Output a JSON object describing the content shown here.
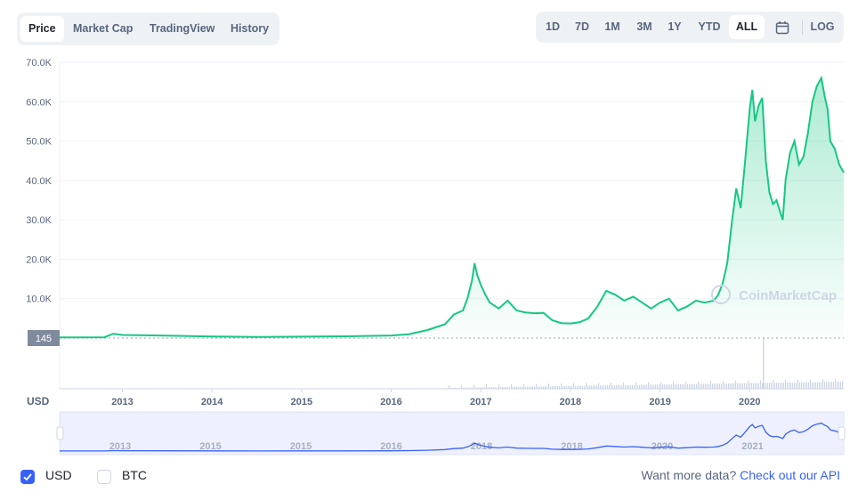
{
  "tabs": [
    "Price",
    "Market Cap",
    "TradingView",
    "History"
  ],
  "active_tab": "Price",
  "ranges": [
    "1D",
    "7D",
    "1M",
    "3M",
    "1Y",
    "YTD",
    "ALL"
  ],
  "active_range": "ALL",
  "log_label": "LOG",
  "icons": {
    "calendar": "calendar-icon",
    "check": "check-icon"
  },
  "currency_axis_label": "USD",
  "watermark": "CoinMarketCap",
  "current_marker": "145",
  "navigator_ticks": [
    "2013",
    "2015",
    "2015",
    "2016",
    "2018",
    "2018",
    "2020",
    "2021"
  ],
  "legend": [
    {
      "label": "USD",
      "checked": true
    },
    {
      "label": "BTC",
      "checked": false
    }
  ],
  "footer": {
    "text": "Want more data?",
    "link": "Check out our API"
  },
  "colors": {
    "line": "#16c784",
    "accent": "#3861fb",
    "volume": "#cfd6e4",
    "navigator_line": "#3861fb"
  },
  "chart_data": {
    "type": "area",
    "ylim": [
      0,
      70000
    ],
    "ytick_labels": [
      "10.0K",
      "20.0K",
      "30.0K",
      "40.0K",
      "50.0K",
      "60.0K",
      "70.0K"
    ],
    "ytick_values": [
      10000,
      20000,
      30000,
      40000,
      50000,
      60000,
      70000
    ],
    "xtick_labels": [
      "2013",
      "2014",
      "2015",
      "2016",
      "2017",
      "2018",
      "2019",
      "2020"
    ],
    "xtick_values": [
      2013,
      2014,
      2015,
      2016,
      2017,
      2018,
      2019,
      2020
    ],
    "xlim": [
      2012.3,
      2021.05
    ],
    "series": [
      {
        "x": [
          2012.3,
          2012.8,
          2012.9,
          2013.0,
          2013.5,
          2014.0,
          2014.5,
          2015.0,
          2015.5,
          2016.0,
          2016.2,
          2016.4,
          2016.6,
          2016.7,
          2016.8,
          2016.85,
          2016.9,
          2016.93,
          2016.96,
          2017.0,
          2017.05,
          2017.1,
          2017.2,
          2017.3,
          2017.4,
          2017.5,
          2017.6,
          2017.7,
          2017.8,
          2017.9,
          2018.0,
          2018.1,
          2018.2,
          2018.3,
          2018.4,
          2018.5,
          2018.6,
          2018.7,
          2018.8,
          2018.9,
          2019.0,
          2019.1,
          2019.2,
          2019.3,
          2019.4,
          2019.5,
          2019.6,
          2019.65,
          2019.7,
          2019.75,
          2019.8,
          2019.85,
          2019.9,
          2019.95,
          2020.0,
          2020.03,
          2020.06,
          2020.1,
          2020.14,
          2020.18,
          2020.22,
          2020.26,
          2020.3,
          2020.34,
          2020.37,
          2020.4,
          2020.45,
          2020.5,
          2020.55,
          2020.6,
          2020.65,
          2020.7,
          2020.75,
          2020.8,
          2020.84,
          2020.87,
          2020.9,
          2020.95,
          2021.0,
          2021.05
        ],
        "y": [
          150,
          200,
          1100,
          800,
          600,
          400,
          300,
          350,
          450,
          650,
          1000,
          2000,
          3500,
          6000,
          7000,
          10000,
          14500,
          19000,
          16000,
          13500,
          11000,
          9000,
          7500,
          9500,
          7000,
          6500,
          6300,
          6400,
          4500,
          3800,
          3700,
          4000,
          5000,
          8000,
          12000,
          11000,
          9500,
          10500,
          9000,
          7500,
          9000,
          10000,
          7000,
          8000,
          9500,
          9000,
          9500,
          11000,
          14000,
          19000,
          29000,
          38000,
          33000,
          45000,
          58000,
          63000,
          55000,
          59000,
          61000,
          45000,
          37000,
          34000,
          35000,
          32000,
          30000,
          40000,
          47000,
          50000,
          44000,
          46000,
          52000,
          60000,
          64000,
          66000,
          61000,
          58000,
          50000,
          48000,
          44000,
          42000
        ]
      }
    ]
  }
}
